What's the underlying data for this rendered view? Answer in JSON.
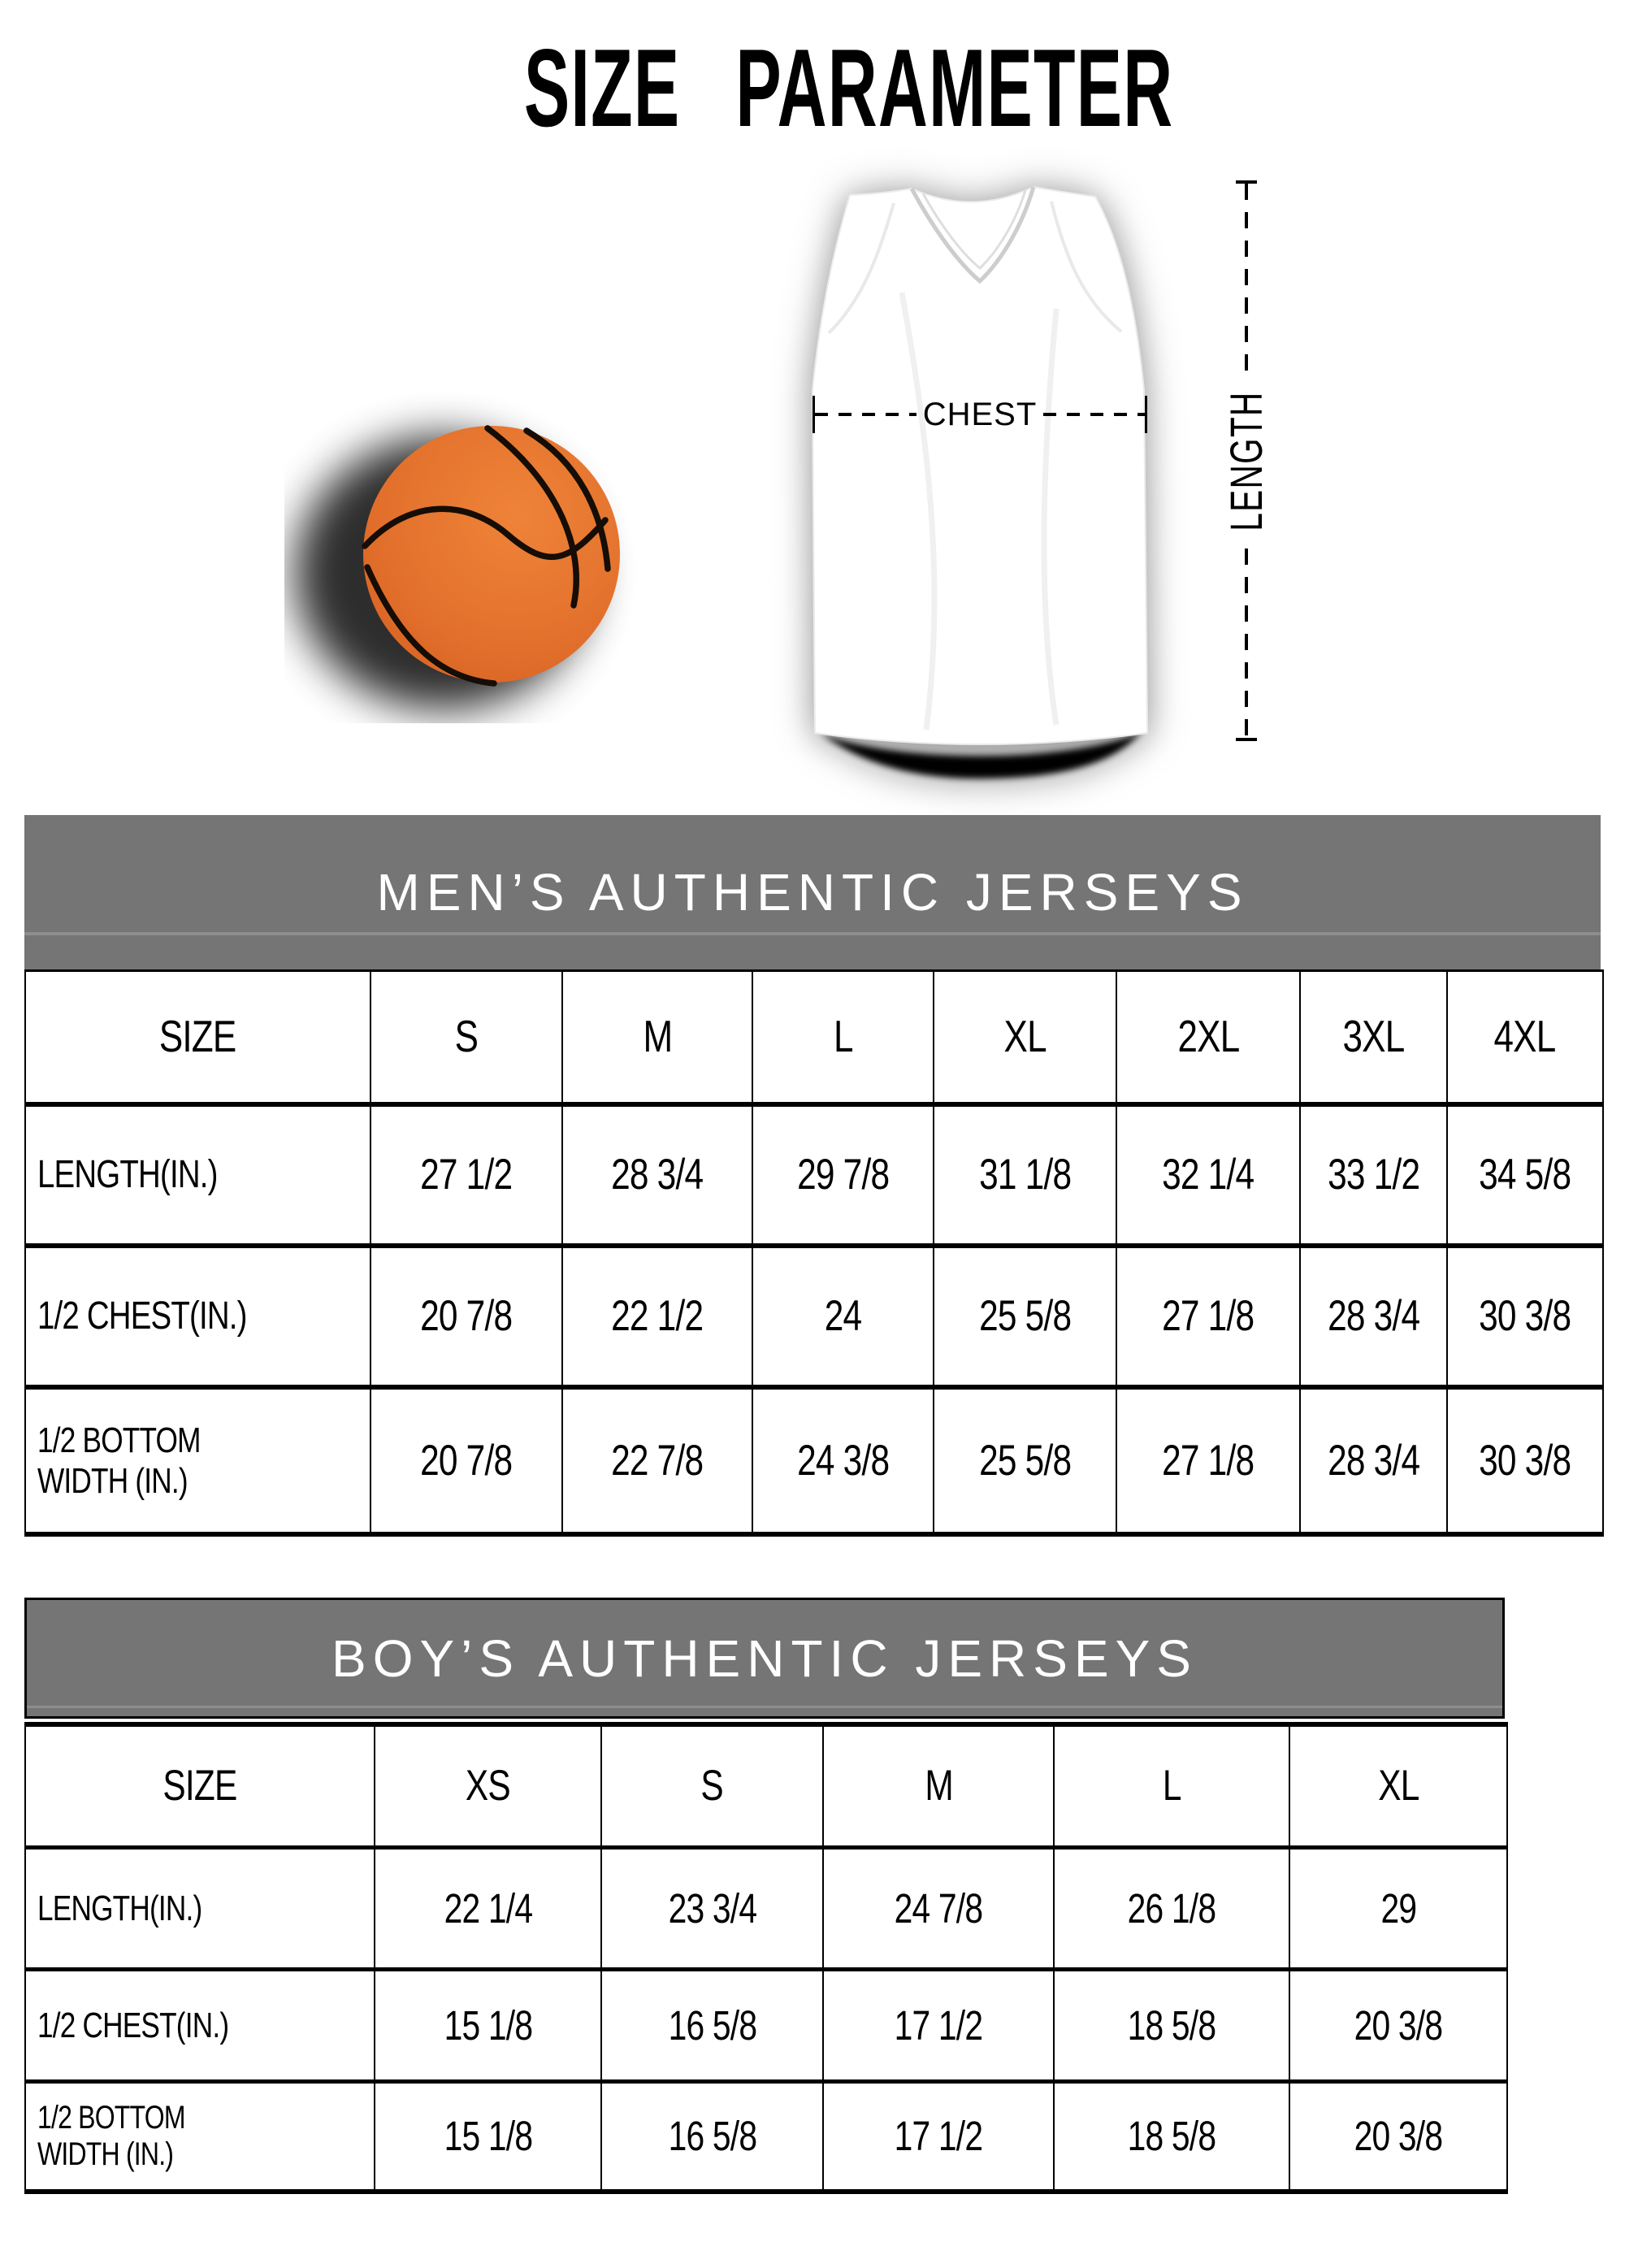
{
  "page": {
    "title": "SIZE PARAMETER"
  },
  "diagram": {
    "chest_label": "CHEST",
    "length_label": "LENGTH",
    "ball_color": "#e2702c",
    "seam_color": "#150d06"
  },
  "colors": {
    "table_header_bg": "#757575",
    "table_header_text": "#ffffff",
    "border": "#000000",
    "text": "#000000"
  },
  "tables": [
    {
      "title": "MEN’S AUTHENTIC JERSEYS",
      "header": [
        "SIZE",
        "S",
        "M",
        "L",
        "XL",
        "2XL",
        "3XL",
        "4XL"
      ],
      "rows": [
        {
          "label_lines": [
            "LENGTH(IN.)"
          ],
          "values": [
            "27 1/2",
            "28 3/4",
            "29 7/8",
            "31 1/8",
            "32 1/4",
            "33 1/2",
            "34 5/8"
          ]
        },
        {
          "label_lines": [
            "1/2 CHEST(IN.)"
          ],
          "values": [
            "20 7/8",
            "22 1/2",
            "24",
            "25 5/8",
            "27 1/8",
            "28 3/4",
            "30 3/8"
          ]
        },
        {
          "label_lines": [
            "1/2 BOTTOM",
            "WIDTH  (IN.)"
          ],
          "values": [
            "20 7/8",
            "22 7/8",
            "24 3/8",
            "25 5/8",
            "27 1/8",
            "28 3/4",
            "30 3/8"
          ]
        }
      ]
    },
    {
      "title": "BOY’S AUTHENTIC JERSEYS",
      "header": [
        "SIZE",
        "XS",
        "S",
        "M",
        "L",
        "XL"
      ],
      "rows": [
        {
          "label_lines": [
            "LENGTH(IN.)"
          ],
          "values": [
            "22 1/4",
            "23 3/4",
            "24 7/8",
            "26 1/8",
            "29"
          ]
        },
        {
          "label_lines": [
            "1/2 CHEST(IN.)"
          ],
          "values": [
            "15 1/8",
            "16 5/8",
            "17 1/2",
            "18 5/8",
            "20 3/8"
          ]
        },
        {
          "label_lines": [
            "1/2 BOTTOM",
            "WIDTH  (IN.)"
          ],
          "values": [
            "15 1/8",
            "16 5/8",
            "17 1/2",
            "18 5/8",
            "20 3/8"
          ]
        }
      ]
    }
  ]
}
